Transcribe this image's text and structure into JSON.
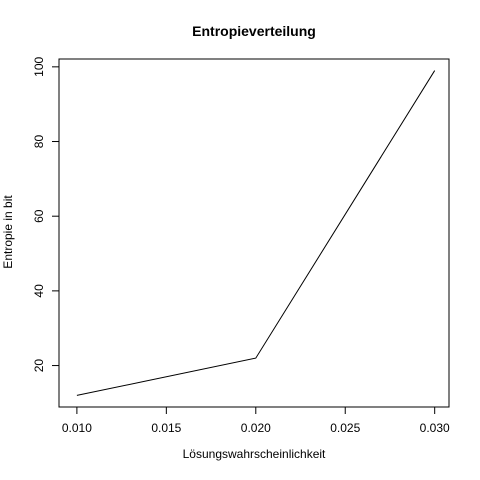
{
  "chart_data": {
    "type": "line",
    "title": "Entropieverteilung",
    "xlabel": "Lösungswahrscheinlichkeit",
    "ylabel": "Entropie in bit",
    "x": [
      0.01,
      0.02,
      0.03
    ],
    "series": [
      {
        "values": [
          12,
          22,
          99
        ]
      }
    ],
    "xlim": [
      0.009,
      0.0308
    ],
    "ylim": [
      8.9,
      102.1
    ],
    "xticks": [
      {
        "value": 0.01,
        "label": "0.010"
      },
      {
        "value": 0.015,
        "label": "0.015"
      },
      {
        "value": 0.02,
        "label": "0.020"
      },
      {
        "value": 0.025,
        "label": "0.025"
      },
      {
        "value": 0.03,
        "label": "0.030"
      }
    ],
    "yticks": [
      {
        "value": 20,
        "label": "20"
      },
      {
        "value": 40,
        "label": "40"
      },
      {
        "value": 60,
        "label": "60"
      },
      {
        "value": 80,
        "label": "80"
      },
      {
        "value": 100,
        "label": "100"
      }
    ],
    "grid": false,
    "line_color": "#000000"
  }
}
